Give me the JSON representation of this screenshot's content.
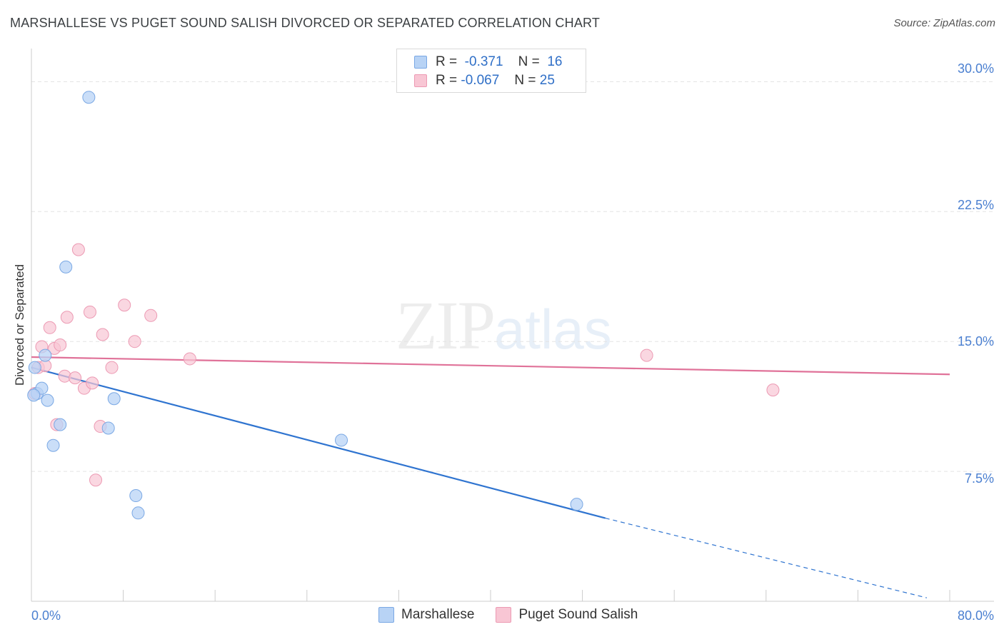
{
  "title": "MARSHALLESE VS PUGET SOUND SALISH DIVORCED OR SEPARATED CORRELATION CHART",
  "source": "Source: ZipAtlas.com",
  "watermark": {
    "zip": "ZIP",
    "atlas": "atlas"
  },
  "legend": {
    "rows": [
      {
        "r_label": "R =",
        "r_value": "-0.371",
        "n_label": "N =",
        "n_value": "16"
      },
      {
        "r_label": "R =",
        "r_value": "-0.067",
        "n_label": "N =",
        "n_value": "25"
      }
    ]
  },
  "colors": {
    "marshallese_fill": "#b8d3f5",
    "marshallese_stroke": "#7aa8e4",
    "marshallese_line": "#2f74d0",
    "salish_fill": "#f8c6d4",
    "salish_stroke": "#ec9ab3",
    "salish_line": "#e07299",
    "grid": "#e3e3e3",
    "axis": "#cccccc",
    "tick_label": "#4a7fd0"
  },
  "chart_data": {
    "type": "scatter",
    "title": "MARSHALLESE VS PUGET SOUND SALISH DIVORCED OR SEPARATED CORRELATION CHART",
    "xlabel": "",
    "ylabel": "Divorced or Separated",
    "xlim": [
      0,
      80
    ],
    "ylim": [
      0,
      31.5
    ],
    "x_tick_labels": [
      "0.0%",
      "80.0%"
    ],
    "y_ticks": [
      7.5,
      15.0,
      22.5,
      30.0
    ],
    "y_tick_labels": [
      "7.5%",
      "15.0%",
      "22.5%",
      "30.0%"
    ],
    "grid": true,
    "series": [
      {
        "name": "Marshallese",
        "points": [
          [
            0.3,
            13.5
          ],
          [
            0.5,
            12.0
          ],
          [
            0.9,
            12.3
          ],
          [
            1.2,
            14.2
          ],
          [
            1.4,
            11.6
          ],
          [
            1.9,
            9.0
          ],
          [
            2.5,
            10.2
          ],
          [
            3.0,
            19.3
          ],
          [
            5.0,
            29.1
          ],
          [
            6.7,
            10.0
          ],
          [
            7.2,
            11.7
          ],
          [
            9.1,
            6.1
          ],
          [
            9.3,
            5.1
          ],
          [
            27.0,
            9.3
          ],
          [
            47.5,
            5.6
          ],
          [
            0.2,
            11.9
          ]
        ],
        "trend": {
          "x0": 0,
          "y0": 13.5,
          "x1": 50,
          "y1": 4.8,
          "dashed_to_x": 78,
          "dashed_to_y": 0.2
        }
      },
      {
        "name": "Puget Sound Salish",
        "points": [
          [
            0.3,
            12.0
          ],
          [
            0.6,
            13.5
          ],
          [
            0.9,
            14.7
          ],
          [
            1.2,
            13.6
          ],
          [
            1.6,
            15.8
          ],
          [
            2.0,
            14.6
          ],
          [
            2.2,
            10.2
          ],
          [
            2.5,
            14.8
          ],
          [
            2.9,
            13.0
          ],
          [
            3.1,
            16.4
          ],
          [
            3.8,
            12.9
          ],
          [
            4.1,
            20.3
          ],
          [
            4.6,
            12.3
          ],
          [
            5.1,
            16.7
          ],
          [
            5.3,
            12.6
          ],
          [
            5.6,
            7.0
          ],
          [
            6.0,
            10.1
          ],
          [
            6.2,
            15.4
          ],
          [
            7.0,
            13.5
          ],
          [
            8.1,
            17.1
          ],
          [
            9.0,
            15.0
          ],
          [
            10.4,
            16.5
          ],
          [
            13.8,
            14.0
          ],
          [
            53.6,
            14.2
          ],
          [
            64.6,
            12.2
          ]
        ],
        "trend": {
          "x0": 0,
          "y0": 14.1,
          "x1": 80,
          "y1": 13.1
        }
      }
    ]
  },
  "bottom_legend": [
    "Marshallese",
    "Puget Sound Salish"
  ]
}
